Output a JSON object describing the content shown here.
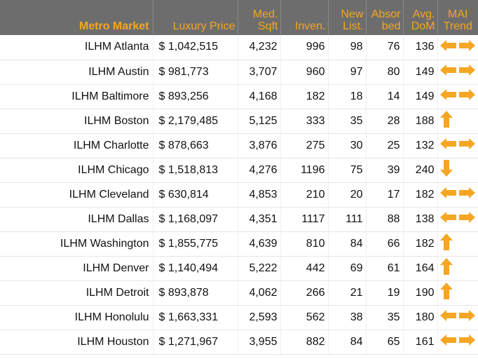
{
  "header": {
    "market": "Metro Market",
    "price": "Luxury Price",
    "sqft_line1": "Med.",
    "sqft_line2": "Sqft",
    "inven": "Inven.",
    "newlist_line1": "New",
    "newlist_line2": "List.",
    "absorbed_line1": "Absor",
    "absorbed_line2": "bed",
    "dom_line1": "Avg.",
    "dom_line2": "DoM",
    "trend_line1": "MAI",
    "trend_line2": "Trend"
  },
  "rows": [
    {
      "market": "ILHM Atlanta",
      "price": "$ 1,042,515",
      "sqft": "4,232",
      "inven": "996",
      "newlist": "98",
      "absorbed": "76",
      "dom": "136",
      "trend": "flat"
    },
    {
      "market": "ILHM Austin",
      "price": "$ 981,773",
      "sqft": "3,707",
      "inven": "960",
      "newlist": "97",
      "absorbed": "80",
      "dom": "149",
      "trend": "flat"
    },
    {
      "market": "ILHM Baltimore",
      "price": "$ 893,256",
      "sqft": "4,168",
      "inven": "182",
      "newlist": "18",
      "absorbed": "14",
      "dom": "149",
      "trend": "flat"
    },
    {
      "market": "ILHM Boston",
      "price": "$ 2,179,485",
      "sqft": "5,125",
      "inven": "333",
      "newlist": "35",
      "absorbed": "28",
      "dom": "188",
      "trend": "up"
    },
    {
      "market": "ILHM Charlotte",
      "price": "$ 878,663",
      "sqft": "3,876",
      "inven": "275",
      "newlist": "30",
      "absorbed": "25",
      "dom": "132",
      "trend": "flat"
    },
    {
      "market": "ILHM Chicago",
      "price": "$ 1,518,813",
      "sqft": "4,276",
      "inven": "1196",
      "newlist": "75",
      "absorbed": "39",
      "dom": "240",
      "trend": "down"
    },
    {
      "market": "ILHM Cleveland",
      "price": "$ 630,814",
      "sqft": "4,853",
      "inven": "210",
      "newlist": "20",
      "absorbed": "17",
      "dom": "182",
      "trend": "flat"
    },
    {
      "market": "ILHM Dallas",
      "price": "$ 1,168,097",
      "sqft": "4,351",
      "inven": "1117",
      "newlist": "111",
      "absorbed": "88",
      "dom": "138",
      "trend": "flat"
    },
    {
      "market": "ILHM Washington",
      "price": "$ 1,855,775",
      "sqft": "4,639",
      "inven": "810",
      "newlist": "84",
      "absorbed": "66",
      "dom": "182",
      "trend": "up"
    },
    {
      "market": "ILHM Denver",
      "price": "$ 1,140,494",
      "sqft": "5,222",
      "inven": "442",
      "newlist": "69",
      "absorbed": "61",
      "dom": "164",
      "trend": "up"
    },
    {
      "market": "ILHM Detroit",
      "price": "$ 893,878",
      "sqft": "4,062",
      "inven": "266",
      "newlist": "21",
      "absorbed": "19",
      "dom": "190",
      "trend": "up"
    },
    {
      "market": "ILHM Honolulu",
      "price": "$ 1,663,331",
      "sqft": "2,593",
      "inven": "562",
      "newlist": "38",
      "absorbed": "35",
      "dom": "180",
      "trend": "flat"
    },
    {
      "market": "ILHM Houston",
      "price": "$ 1,271,967",
      "sqft": "3,955",
      "inven": "882",
      "newlist": "84",
      "absorbed": "65",
      "dom": "161",
      "trend": "flat"
    }
  ],
  "colors": {
    "header_bg": "#6d6d6d",
    "header_text": "#f5a623",
    "arrow": "#f5a623"
  }
}
